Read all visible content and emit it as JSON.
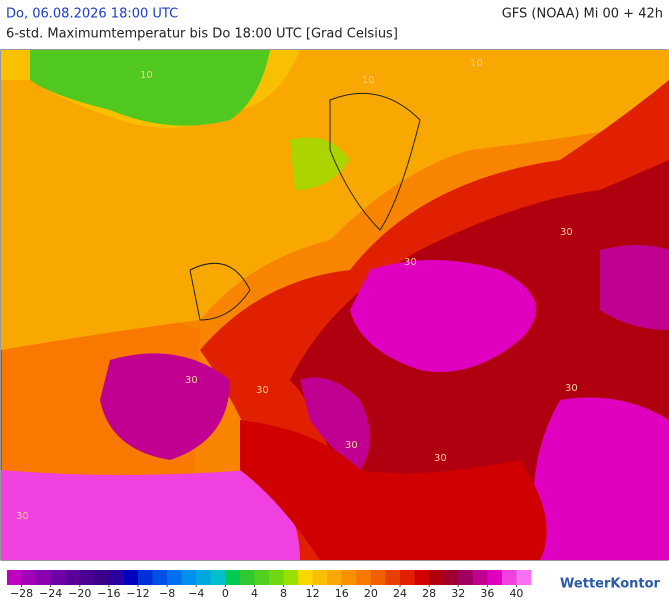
{
  "header": {
    "date": "Do, 06.08.2026 18:00 UTC",
    "model": "GFS (NOAA) Mi 00 + 42h",
    "subtitle": "6-std. Maximumtemperatur bis Do 18:00 UTC [Grad Celsius]"
  },
  "map": {
    "contour_labels": [
      "10",
      "10",
      "10",
      "30",
      "30",
      "30",
      "30",
      "30",
      "30",
      "30",
      "30"
    ]
  },
  "legend": {
    "range": [
      -30,
      42
    ],
    "colors": [
      "#c000c0",
      "#a000b8",
      "#8a00b0",
      "#7000a8",
      "#5a0098",
      "#4a0090",
      "#3a0088",
      "#2a00a0",
      "#0000c0",
      "#0030d8",
      "#0050e8",
      "#0070f0",
      "#0090f0",
      "#00a8e0",
      "#00c0d0",
      "#00c850",
      "#30c830",
      "#50d020",
      "#70d810",
      "#98e000",
      "#f8d800",
      "#f8c000",
      "#f8a800",
      "#f89000",
      "#f87800",
      "#f06000",
      "#e84000",
      "#e02000",
      "#d00000",
      "#b00010",
      "#a00030",
      "#a00060",
      "#c00090",
      "#e000c0",
      "#f040e0",
      "#f870f0"
    ],
    "ticks": [
      {
        "value": -28,
        "label": "−28"
      },
      {
        "value": -24,
        "label": "−24"
      },
      {
        "value": -20,
        "label": "−20"
      },
      {
        "value": -16,
        "label": "−16"
      },
      {
        "value": -12,
        "label": "−12"
      },
      {
        "value": -8,
        "label": "−8"
      },
      {
        "value": -4,
        "label": "−4"
      },
      0,
      4,
      8,
      12,
      16,
      20,
      24,
      28,
      32,
      36,
      40
    ]
  },
  "logo": "WetterKontor"
}
